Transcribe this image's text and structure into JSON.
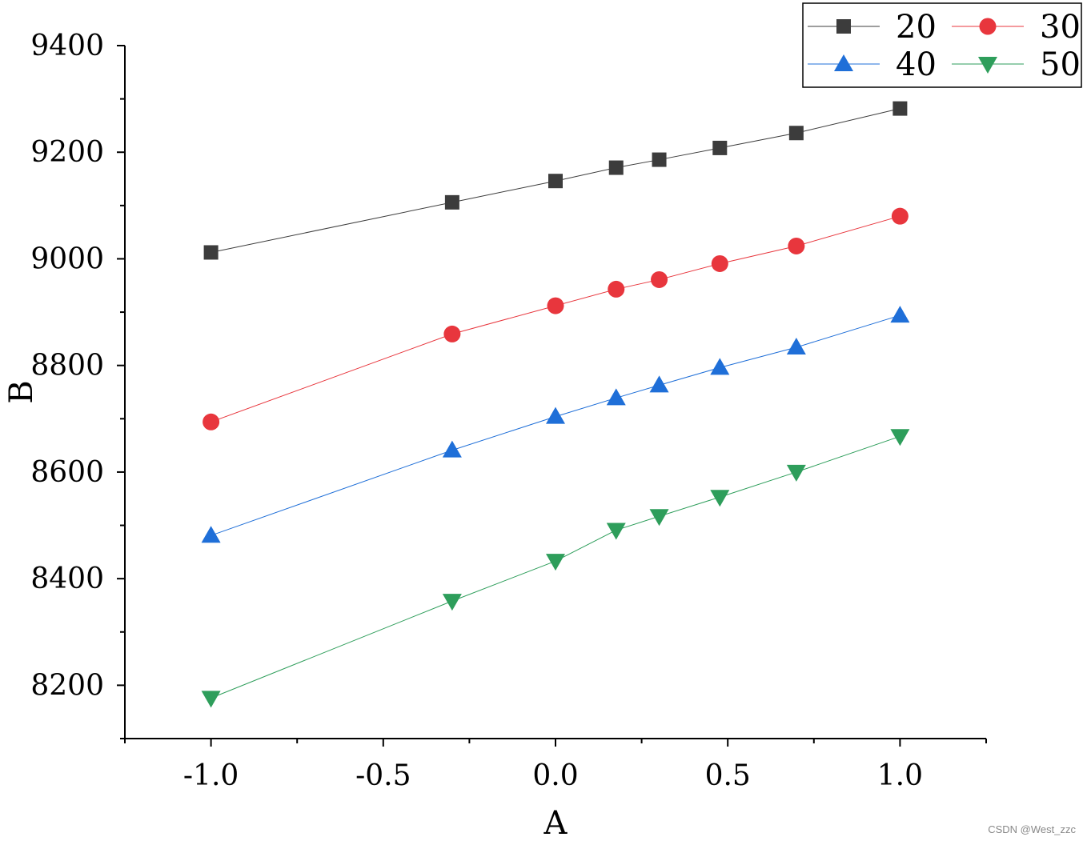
{
  "chart_data": {
    "type": "line",
    "title": "",
    "xlabel": "A",
    "ylabel": "B",
    "xlim": [
      -1.25,
      1.25
    ],
    "ylim": [
      8100,
      9400
    ],
    "x_ticks": [
      -1.0,
      -0.5,
      0.0,
      0.5,
      1.0
    ],
    "x_tick_labels": [
      "-1.0",
      "-0.5",
      "0.0",
      "0.5",
      "1.0"
    ],
    "y_ticks": [
      8200,
      8400,
      8600,
      8800,
      9000,
      9200,
      9400
    ],
    "y_tick_labels": [
      "8200",
      "8400",
      "8600",
      "8800",
      "9000",
      "9200",
      "9400"
    ],
    "grid": false,
    "legend_position": "top-right",
    "x": [
      -1.0,
      -0.3,
      0.0,
      0.176,
      0.301,
      0.477,
      0.699,
      1.0
    ],
    "series": [
      {
        "name": "20",
        "color": "#3c3c3c",
        "marker": "square",
        "values": [
          9012,
          9106,
          9146,
          9171,
          9186,
          9208,
          9236,
          9282
        ]
      },
      {
        "name": "30",
        "color": "#e8363d",
        "marker": "circle",
        "values": [
          8694,
          8859,
          8912,
          8943,
          8961,
          8991,
          9024,
          9080
        ]
      },
      {
        "name": "40",
        "color": "#1f6fd8",
        "marker": "triangle-up",
        "values": [
          8481,
          8641,
          8704,
          8739,
          8763,
          8796,
          8834,
          8894
        ]
      },
      {
        "name": "50",
        "color": "#2e9e5b",
        "marker": "triangle-down",
        "values": [
          8176,
          8358,
          8433,
          8491,
          8517,
          8553,
          8600,
          8667
        ]
      }
    ]
  },
  "watermark": "CSDN @West_zzc"
}
